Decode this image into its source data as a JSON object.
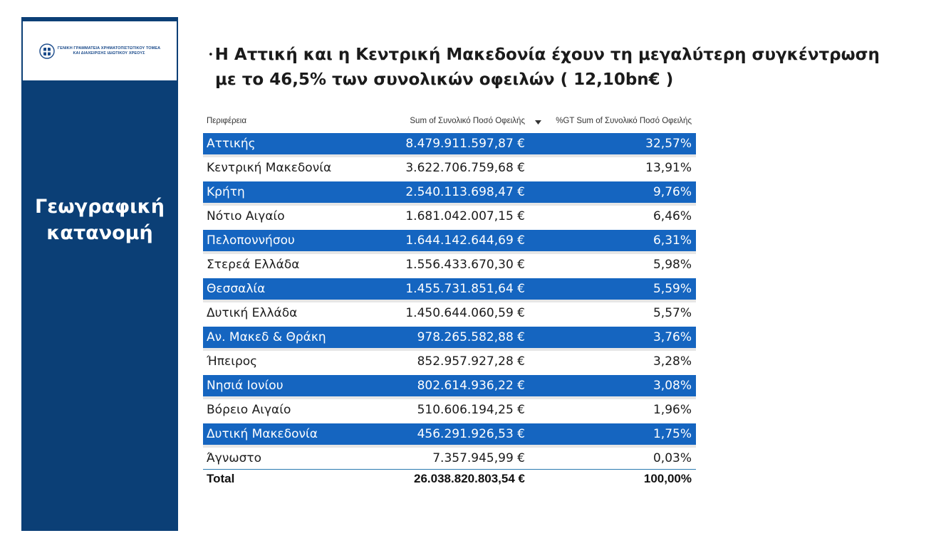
{
  "sidebar": {
    "logo_text": [
      "ΓΕΝΙΚΗ ΓΡΑΜΜΑΤΕΙΑ ΧΡΗΜΑΤΟΠΙΣΤΩΤΙΚΟΥ ΤΟΜΕΑ",
      "ΚΑΙ ΔΙΑΧΕΙΡΙΣΗΣ ΙΔΙΩΤΙΚΟΥ ΧΡΕΟΥΣ"
    ],
    "title_line1": "Γεωγραφική",
    "title_line2": "κατανομή"
  },
  "headline": {
    "bullet": "•",
    "line1": "Η Αττική και η Κεντρική Μακεδονία  έχουν τη μεγαλύτερη συγκέντρωση",
    "line2": "με το 46,5% των συνολικών οφειλών ( 12,10bn€ )"
  },
  "table": {
    "headers": [
      "Περιφέρεια",
      "Sum of Συνολικό Ποσό Οφειλής",
      "%GT Sum of Συνολικό Ποσό Οφειλής"
    ],
    "rows": [
      {
        "region": "Αττικής",
        "amount": "8.479.911.597,87 €",
        "pct": "32,57%"
      },
      {
        "region": "Κεντρική Μακεδονία",
        "amount": "3.622.706.759,68 €",
        "pct": "13,91%"
      },
      {
        "region": "Κρήτη",
        "amount": "2.540.113.698,47 €",
        "pct": "9,76%"
      },
      {
        "region": "Νότιο Αιγαίο",
        "amount": "1.681.042.007,15 €",
        "pct": "6,46%"
      },
      {
        "region": "Πελοποννήσου",
        "amount": "1.644.142.644,69 €",
        "pct": "6,31%"
      },
      {
        "region": "Στερεά Ελλάδα",
        "amount": "1.556.433.670,30 €",
        "pct": "5,98%"
      },
      {
        "region": "Θεσσαλία",
        "amount": "1.455.731.851,64 €",
        "pct": "5,59%"
      },
      {
        "region": "Δυτική Ελλάδα",
        "amount": "1.450.644.060,59 €",
        "pct": "5,57%"
      },
      {
        "region": "Αν. Μακεδ & Θράκη",
        "amount": "978.265.582,88 €",
        "pct": "3,76%"
      },
      {
        "region": "Ήπειρος",
        "amount": "852.957.927,28 €",
        "pct": "3,28%"
      },
      {
        "region": "Νησιά Ιονίου",
        "amount": "802.614.936,22 €",
        "pct": "3,08%"
      },
      {
        "region": "Βόρειο Αιγαίο",
        "amount": "510.606.194,25 €",
        "pct": "1,96%"
      },
      {
        "region": "Δυτική Μακεδονία",
        "amount": "456.291.926,53 €",
        "pct": "1,75%"
      },
      {
        "region": "Άγνωστο",
        "amount": "7.357.945,99 €",
        "pct": "0,03%"
      }
    ],
    "total": {
      "label": "Total",
      "amount": "26.038.820.803,54 €",
      "pct": "100,00%"
    }
  },
  "colors": {
    "sidebar": "#0b3f76",
    "row_highlight": "#1565c0",
    "row_separator": "#e6e6e6",
    "total_border": "#2a7bb0"
  },
  "icons": {
    "logo": "greek-coat-of-arms-icon",
    "sort": "sort-descending-icon"
  }
}
